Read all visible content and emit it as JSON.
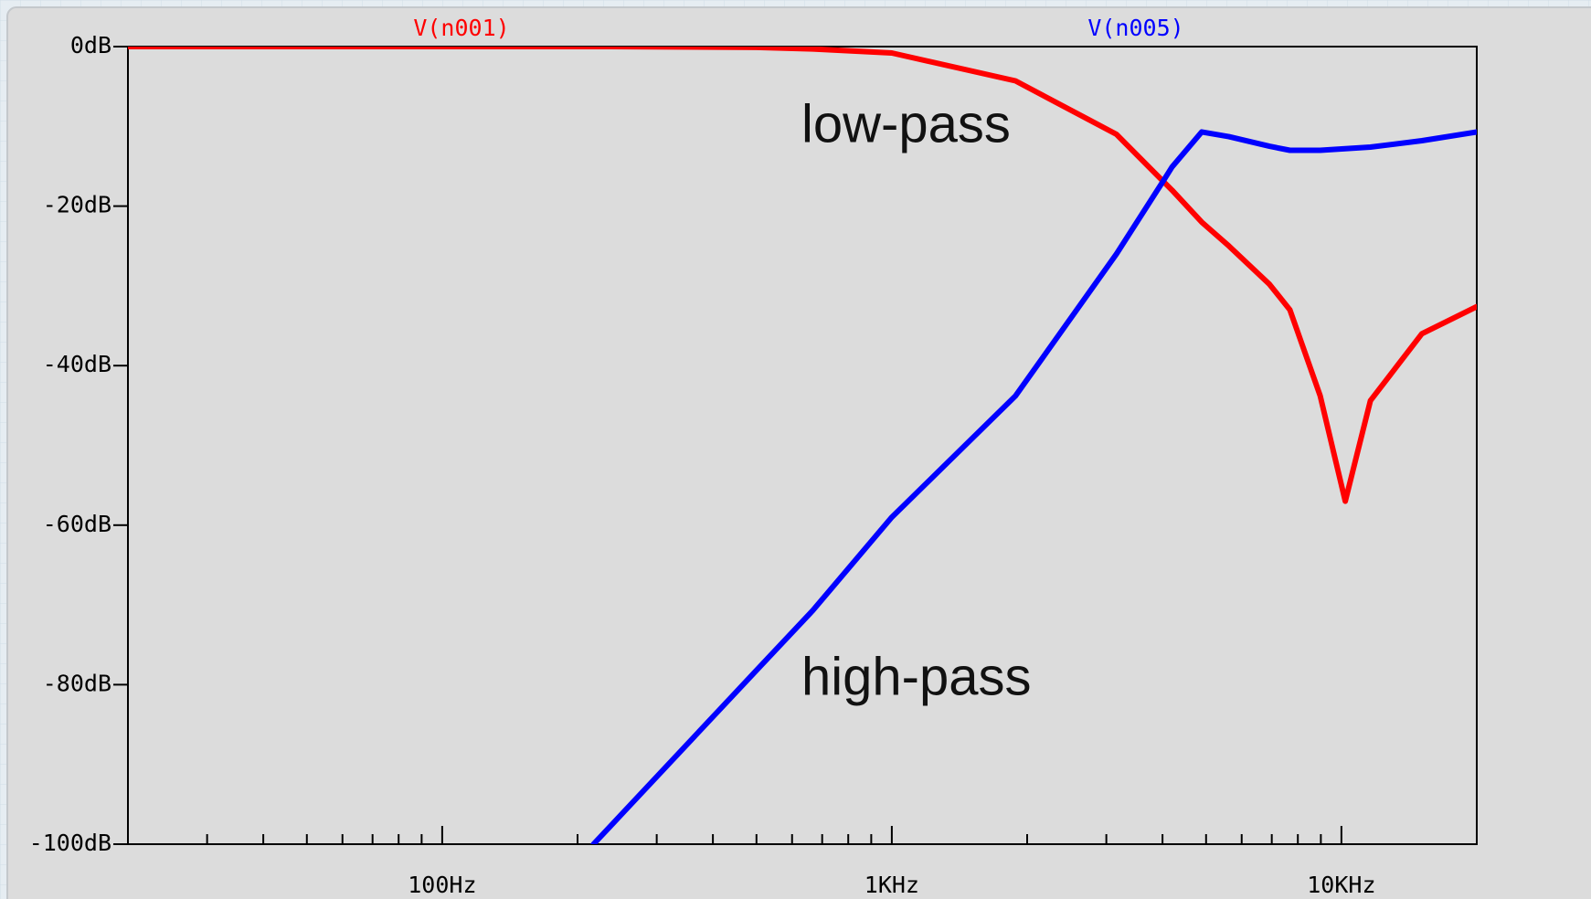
{
  "chart_data": {
    "type": "line",
    "x": [
      20,
      100,
      217,
      237,
      500,
      667,
      1000,
      1884,
      3160,
      4000,
      4200,
      4890,
      5620,
      6920,
      7680,
      8970,
      10200,
      11600,
      15100,
      20000
    ],
    "series": [
      {
        "name": "V(n001)",
        "color": "#ff0000",
        "values": [
          0,
          0,
          0,
          0,
          -0.1,
          -0.3,
          -0.8,
          -4.3,
          -11,
          -16.8,
          -18,
          -22,
          -25,
          -29.8,
          -33,
          -43.8,
          -57,
          -44.4,
          -36,
          -32.6
        ]
      },
      {
        "name": "V(n005)",
        "color": "#0000ff",
        "values": [
          null,
          null,
          -100,
          -97.7,
          -78.2,
          -70.7,
          -59,
          -43.8,
          -26,
          -17,
          -15.1,
          -10.7,
          -11.3,
          -12.5,
          -13,
          -13,
          -12.8,
          -12.6,
          -11.8,
          -10.7
        ]
      }
    ],
    "annotations": [
      "low-pass",
      "high-pass"
    ],
    "xscale": "log",
    "xlim": [
      20,
      20000
    ],
    "xticks": [
      {
        "value": 100,
        "label": "100Hz"
      },
      {
        "value": 1000,
        "label": "1KHz"
      },
      {
        "value": 10000,
        "label": "10KHz"
      }
    ],
    "xminorticks": [
      30,
      40,
      50,
      60,
      70,
      80,
      90,
      200,
      300,
      400,
      500,
      600,
      700,
      800,
      900,
      2000,
      3000,
      4000,
      5000,
      6000,
      7000,
      8000,
      9000,
      20000
    ],
    "ylim": [
      -100,
      0
    ],
    "yticks": [
      {
        "value": 0,
        "label": "0dB"
      },
      {
        "value": -20,
        "label": "-20dB"
      },
      {
        "value": -40,
        "label": "-40dB"
      },
      {
        "value": -60,
        "label": "-60dB"
      },
      {
        "value": -80,
        "label": "-80dB"
      },
      {
        "value": -100,
        "label": "-100dB"
      }
    ],
    "grid": false
  }
}
